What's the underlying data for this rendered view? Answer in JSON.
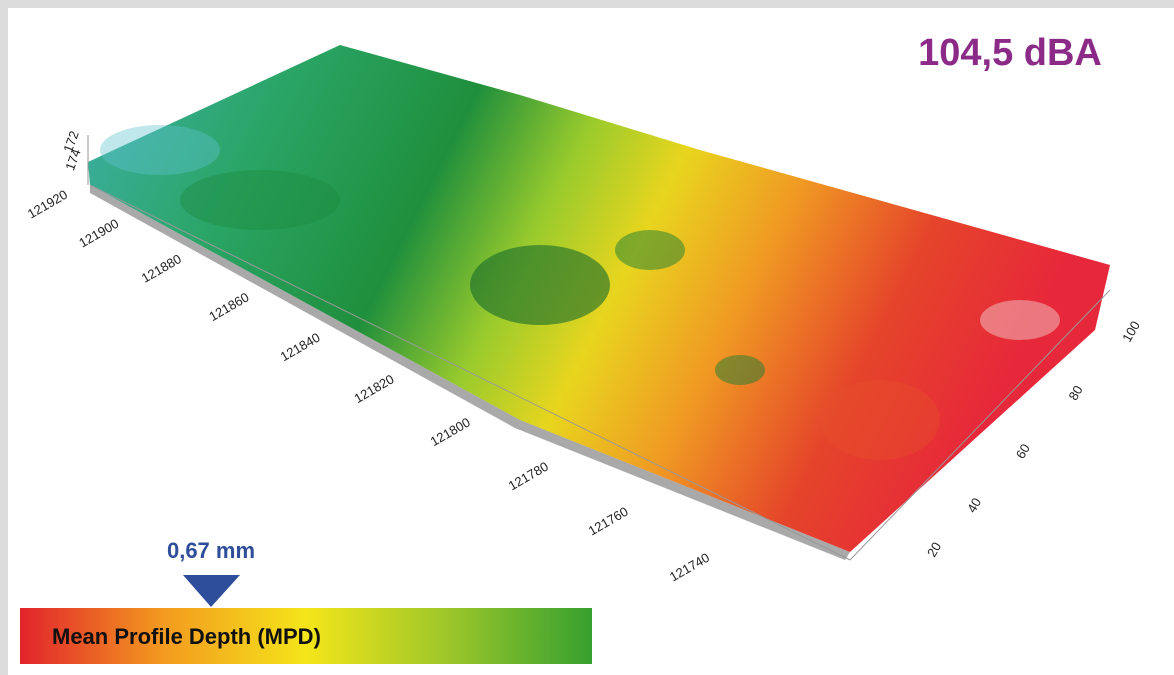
{
  "noise_level": "104,5 dBA",
  "mpd": {
    "marker_label": "0,67 mm",
    "scale_label": "Mean Profile Depth (MPD)"
  },
  "axis_x": {
    "ticks": [
      121920,
      121900,
      121880,
      121860,
      121840,
      121820,
      121800,
      121780,
      121760,
      121740
    ]
  },
  "axis_y": {
    "ticks": [
      20,
      40,
      60,
      80,
      100
    ]
  },
  "axis_z": {
    "ticks": [
      172,
      174
    ]
  }
}
